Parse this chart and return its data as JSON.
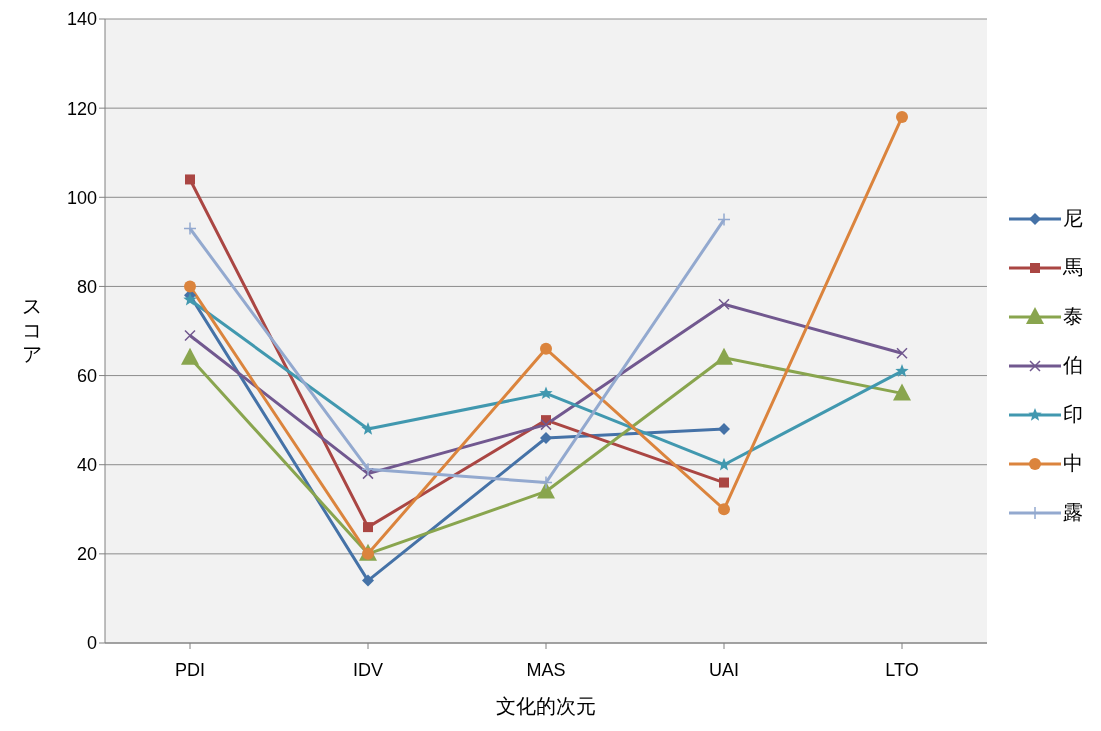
{
  "chart_data": {
    "type": "line",
    "xlabel": "文化的次元",
    "ylabel": "スコア",
    "categories": [
      "PDI",
      "IDV",
      "MAS",
      "UAI",
      "LTO"
    ],
    "series": [
      {
        "name": "尼",
        "color": "#4572a7",
        "marker": "diamond",
        "values": [
          78,
          14,
          46,
          48,
          null
        ]
      },
      {
        "name": "馬",
        "color": "#aa4643",
        "marker": "square",
        "values": [
          104,
          26,
          50,
          36,
          null
        ]
      },
      {
        "name": "泰",
        "color": "#89a54e",
        "marker": "triangle",
        "values": [
          64,
          20,
          34,
          64,
          56
        ]
      },
      {
        "name": "伯",
        "color": "#71588f",
        "marker": "cross",
        "values": [
          69,
          38,
          49,
          76,
          65
        ]
      },
      {
        "name": "印",
        "color": "#4198af",
        "marker": "star",
        "values": [
          77,
          48,
          56,
          40,
          61
        ]
      },
      {
        "name": "中",
        "color": "#db843d",
        "marker": "circle",
        "values": [
          80,
          20,
          66,
          30,
          118
        ]
      },
      {
        "name": "露",
        "color": "#93a9cf",
        "marker": "plus",
        "values": [
          93,
          39,
          36,
          95,
          null
        ]
      }
    ],
    "ylim": [
      0,
      140
    ],
    "yticks": [
      0,
      20,
      40,
      60,
      80,
      100,
      120,
      140
    ],
    "grid": "y",
    "legend": "right",
    "line_style": "solid"
  }
}
